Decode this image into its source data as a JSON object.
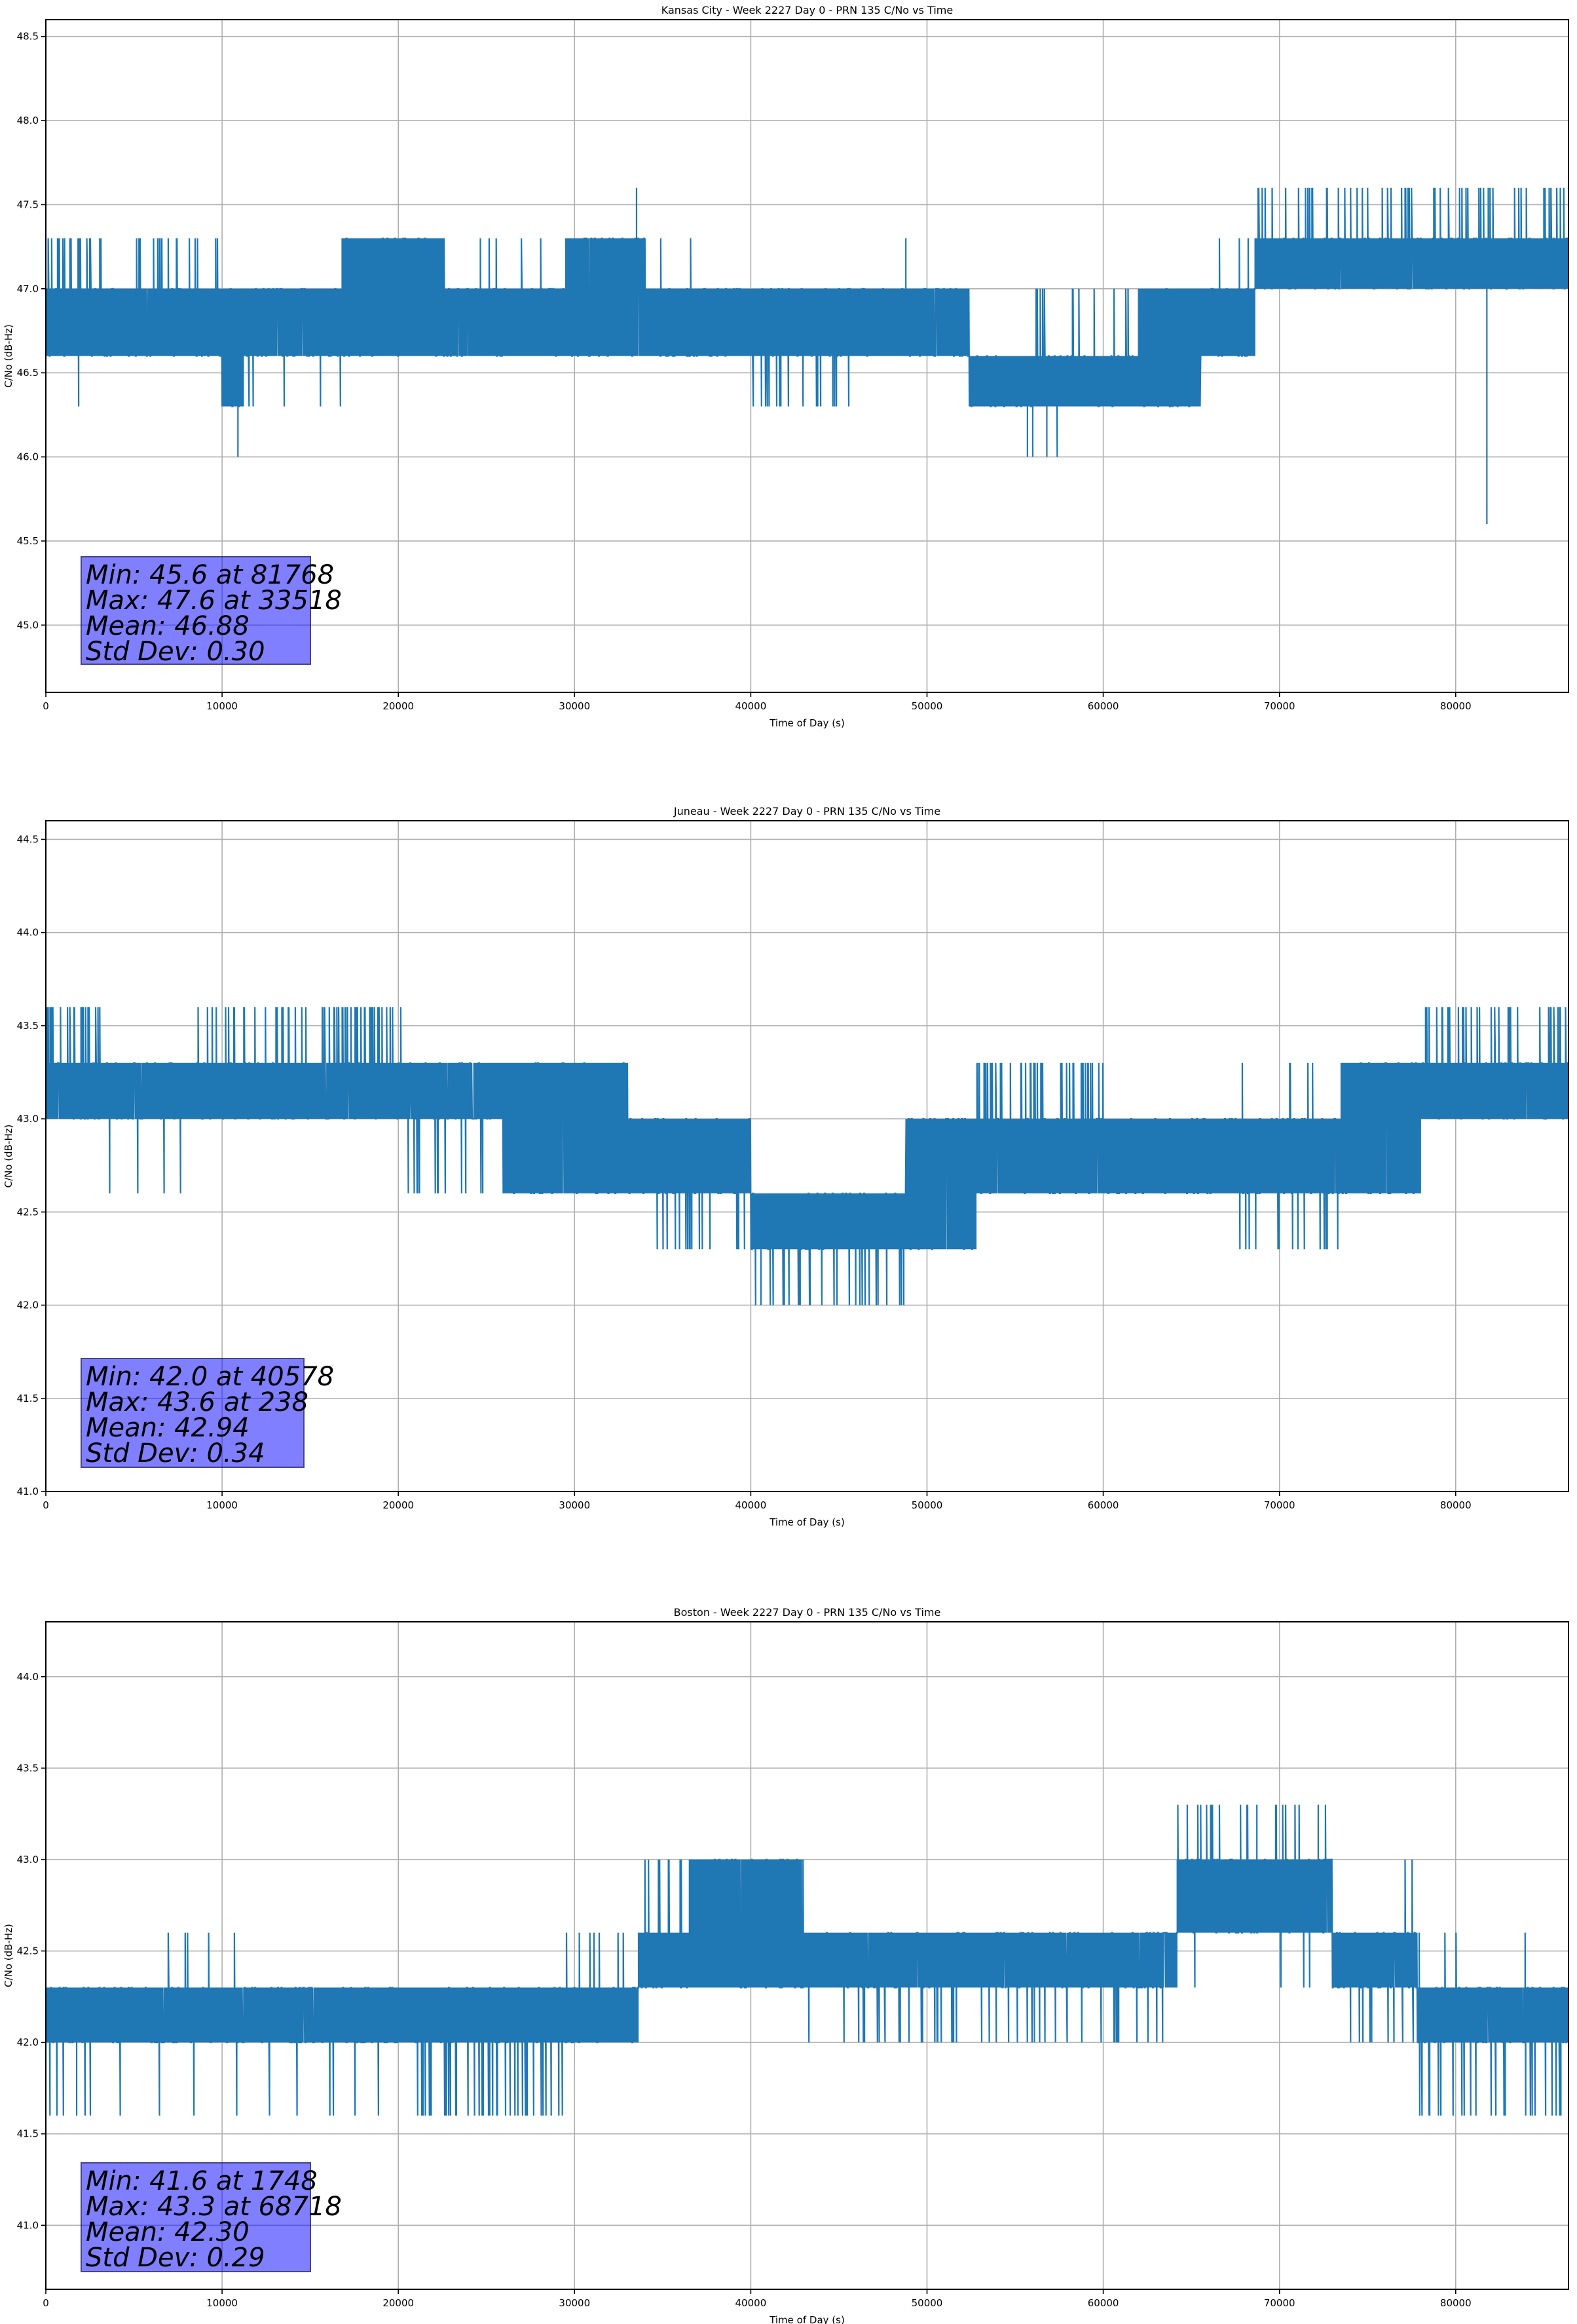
{
  "figure": {
    "line_color": "#1f77b4",
    "statbox_color": "#8080ff"
  },
  "chart_data": [
    {
      "type": "line",
      "title": "Kansas City - Week 2227 Day 0 - PRN 135 C/No vs Time",
      "xlabel": "Time of Day (s)",
      "ylabel": "C/No (dB-Hz)",
      "xlim": [
        0,
        86400
      ],
      "ylim": [
        44.6,
        48.6
      ],
      "xticks": [
        0,
        10000,
        20000,
        30000,
        40000,
        50000,
        60000,
        70000,
        80000
      ],
      "xtick_labels": [
        "0",
        "10000",
        "20000",
        "30000",
        "40000",
        "50000",
        "60000",
        "70000",
        "80000"
      ],
      "yticks": [
        45.0,
        45.5,
        46.0,
        46.5,
        47.0,
        47.5,
        48.0,
        48.5
      ],
      "ytick_labels": [
        "45.0",
        "45.5",
        "46.0",
        "46.5",
        "47.0",
        "47.5",
        "48.0",
        "48.5"
      ],
      "grid": true,
      "stats": {
        "min_label": "Min: 45.6 at 81768",
        "max_label": "Max: 47.6 at 33518",
        "mean_label": "Mean: 46.88",
        "std_label": "Std Dev: 0.30",
        "min": 45.6,
        "min_time": 81768,
        "max": 47.6,
        "max_time": 33518,
        "mean": 46.88,
        "std": 0.3
      },
      "series_segments": [
        {
          "t0": 0,
          "t1": 3200,
          "lo": 46.6,
          "hi": 47.0,
          "up": 47.3,
          "up_rate": 0.5,
          "down": 46.3,
          "down_rate": 0.08
        },
        {
          "t0": 3200,
          "t1": 4800,
          "lo": 46.6,
          "hi": 47.0,
          "up": 47.3,
          "up_rate": 0.05,
          "down": 46.3,
          "down_rate": 0.05
        },
        {
          "t0": 4800,
          "t1": 10000,
          "lo": 46.6,
          "hi": 47.0,
          "up": 47.3,
          "up_rate": 0.35,
          "down": 46.3,
          "down_rate": 0.0
        },
        {
          "t0": 10000,
          "t1": 11200,
          "lo": 46.3,
          "hi": 47.0,
          "up": 47.3,
          "up_rate": 0.0,
          "down": 46.0,
          "down_rate": 0.03
        },
        {
          "t0": 11200,
          "t1": 16800,
          "lo": 46.6,
          "hi": 47.0,
          "up": 47.3,
          "up_rate": 0.0,
          "down": 46.3,
          "down_rate": 0.1
        },
        {
          "t0": 16800,
          "t1": 22600,
          "lo": 46.6,
          "hi": 47.3,
          "up": 47.3,
          "up_rate": 0.6,
          "down": 46.3,
          "down_rate": 0.0
        },
        {
          "t0": 22600,
          "t1": 29500,
          "lo": 46.6,
          "hi": 47.0,
          "up": 47.3,
          "up_rate": 0.08,
          "down": 46.3,
          "down_rate": 0.0
        },
        {
          "t0": 29500,
          "t1": 34000,
          "lo": 46.6,
          "hi": 47.3,
          "up": 47.3,
          "up_rate": 0.8,
          "down": 46.3,
          "down_rate": 0.0
        },
        {
          "t0": 34000,
          "t1": 40000,
          "lo": 46.6,
          "hi": 47.0,
          "up": 47.3,
          "up_rate": 0.06,
          "down": 46.3,
          "down_rate": 0.0
        },
        {
          "t0": 40000,
          "t1": 46000,
          "lo": 46.6,
          "hi": 47.0,
          "up": 47.3,
          "up_rate": 0.0,
          "down": 46.3,
          "down_rate": 0.3
        },
        {
          "t0": 46000,
          "t1": 52400,
          "lo": 46.6,
          "hi": 47.0,
          "up": 47.3,
          "up_rate": 0.01,
          "down": 46.3,
          "down_rate": 0.0
        },
        {
          "t0": 52400,
          "t1": 58500,
          "lo": 46.3,
          "hi": 46.6,
          "up": 47.0,
          "up_rate": 0.05,
          "down": 46.0,
          "down_rate": 0.02
        },
        {
          "t0": 58500,
          "t1": 62000,
          "lo": 46.3,
          "hi": 46.6,
          "up": 47.0,
          "up_rate": 0.15,
          "down": 46.0,
          "down_rate": 0.0
        },
        {
          "t0": 62000,
          "t1": 65500,
          "lo": 46.3,
          "hi": 47.0,
          "up": 47.0,
          "up_rate": 0.2,
          "down": 46.0,
          "down_rate": 0.0
        },
        {
          "t0": 65500,
          "t1": 68600,
          "lo": 46.6,
          "hi": 47.0,
          "up": 47.3,
          "up_rate": 0.15,
          "down": 46.3,
          "down_rate": 0.0
        },
        {
          "t0": 68600,
          "t1": 86400,
          "lo": 47.0,
          "hi": 47.3,
          "up": 47.6,
          "up_rate": 0.35,
          "down": 46.6,
          "down_rate": 0.0
        }
      ],
      "series_spikes": [
        {
          "t": 10900,
          "v": 46.0
        },
        {
          "t": 33518,
          "v": 47.6
        },
        {
          "t": 48800,
          "v": 47.3
        },
        {
          "t": 55700,
          "v": 46.0
        },
        {
          "t": 56000,
          "v": 46.0
        },
        {
          "t": 56800,
          "v": 46.0
        },
        {
          "t": 81768,
          "v": 45.6
        }
      ]
    },
    {
      "type": "line",
      "title": "Juneau - Week 2227 Day 0 - PRN 135 C/No vs Time",
      "xlabel": "Time of Day (s)",
      "ylabel": "C/No (dB-Hz)",
      "xlim": [
        0,
        86400
      ],
      "ylim": [
        41.0,
        44.6
      ],
      "xticks": [
        0,
        10000,
        20000,
        30000,
        40000,
        50000,
        60000,
        70000,
        80000
      ],
      "xtick_labels": [
        "0",
        "10000",
        "20000",
        "30000",
        "40000",
        "50000",
        "60000",
        "70000",
        "80000"
      ],
      "yticks": [
        41.0,
        41.5,
        42.0,
        42.5,
        43.0,
        43.5,
        44.0,
        44.5
      ],
      "ytick_labels": [
        "41.0",
        "41.5",
        "42.0",
        "42.5",
        "43.0",
        "43.5",
        "44.0",
        "44.5"
      ],
      "grid": true,
      "stats": {
        "min_label": "Min: 42.0 at 40578",
        "max_label": "Max: 43.6 at 238",
        "mean_label": "Mean: 42.94",
        "std_label": "Std Dev: 0.34",
        "min": 42.0,
        "min_time": 40578,
        "max": 43.6,
        "max_time": 238,
        "mean": 42.94,
        "std": 0.34
      },
      "series_segments": [
        {
          "t0": 0,
          "t1": 3200,
          "lo": 43.0,
          "hi": 43.3,
          "up": 43.6,
          "up_rate": 0.6,
          "down": 42.6,
          "down_rate": 0.0
        },
        {
          "t0": 3200,
          "t1": 8500,
          "lo": 43.0,
          "hi": 43.3,
          "up": 43.6,
          "up_rate": 0.02,
          "down": 42.6,
          "down_rate": 0.12
        },
        {
          "t0": 8500,
          "t1": 20500,
          "lo": 43.0,
          "hi": 43.3,
          "up": 43.6,
          "up_rate": 0.45,
          "down": 42.6,
          "down_rate": 0.0
        },
        {
          "t0": 20500,
          "t1": 26000,
          "lo": 43.0,
          "hi": 43.3,
          "up": 43.6,
          "up_rate": 0.0,
          "down": 42.6,
          "down_rate": 0.25
        },
        {
          "t0": 26000,
          "t1": 33000,
          "lo": 42.6,
          "hi": 43.3,
          "up": 43.3,
          "up_rate": 0.5,
          "down": 42.6,
          "down_rate": 0.0
        },
        {
          "t0": 33000,
          "t1": 34500,
          "lo": 42.6,
          "hi": 43.0,
          "up": 43.3,
          "up_rate": 0.1,
          "down": 42.3,
          "down_rate": 0.0
        },
        {
          "t0": 34500,
          "t1": 40000,
          "lo": 42.6,
          "hi": 43.0,
          "up": 43.3,
          "up_rate": 0.0,
          "down": 42.3,
          "down_rate": 0.2
        },
        {
          "t0": 40000,
          "t1": 48800,
          "lo": 42.3,
          "hi": 42.6,
          "up": 43.0,
          "up_rate": 0.0,
          "down": 42.0,
          "down_rate": 0.3
        },
        {
          "t0": 48800,
          "t1": 52800,
          "lo": 42.3,
          "hi": 43.0,
          "up": 43.0,
          "up_rate": 0.2,
          "down": 42.0,
          "down_rate": 0.0
        },
        {
          "t0": 52800,
          "t1": 60000,
          "lo": 42.6,
          "hi": 43.0,
          "up": 43.3,
          "up_rate": 0.55,
          "down": 42.3,
          "down_rate": 0.0
        },
        {
          "t0": 60000,
          "t1": 66500,
          "lo": 42.6,
          "hi": 43.0,
          "up": 43.3,
          "up_rate": 0.0,
          "down": 42.3,
          "down_rate": 0.0
        },
        {
          "t0": 66500,
          "t1": 73500,
          "lo": 42.6,
          "hi": 43.0,
          "up": 43.3,
          "up_rate": 0.08,
          "down": 42.3,
          "down_rate": 0.15
        },
        {
          "t0": 73500,
          "t1": 78000,
          "lo": 42.6,
          "hi": 43.3,
          "up": 43.3,
          "up_rate": 0.4,
          "down": 42.3,
          "down_rate": 0.0
        },
        {
          "t0": 78000,
          "t1": 86400,
          "lo": 43.0,
          "hi": 43.3,
          "up": 43.6,
          "up_rate": 0.45,
          "down": 42.6,
          "down_rate": 0.0
        }
      ],
      "series_spikes": [
        {
          "t": 238,
          "v": 43.6
        },
        {
          "t": 40578,
          "v": 42.0
        }
      ]
    },
    {
      "type": "line",
      "title": "Boston - Week 2227 Day 0 - PRN 135 C/No vs Time",
      "xlabel": "Time of Day (s)",
      "ylabel": "C/No (dB-Hz)",
      "xlim": [
        0,
        86400
      ],
      "ylim": [
        40.65,
        44.3
      ],
      "xticks": [
        0,
        10000,
        20000,
        30000,
        40000,
        50000,
        60000,
        70000,
        80000
      ],
      "xtick_labels": [
        "0",
        "10000",
        "20000",
        "30000",
        "40000",
        "50000",
        "60000",
        "70000",
        "80000"
      ],
      "yticks": [
        41.0,
        41.5,
        42.0,
        42.5,
        43.0,
        43.5,
        44.0
      ],
      "ytick_labels": [
        "41.0",
        "41.5",
        "42.0",
        "42.5",
        "43.0",
        "43.5",
        "44.0"
      ],
      "grid": true,
      "stats": {
        "min_label": "Min: 41.6 at 1748",
        "max_label": "Max: 43.3 at 68718",
        "mean_label": "Mean: 42.30",
        "std_label": "Std Dev: 0.29",
        "min": 41.6,
        "min_time": 1748,
        "max": 43.3,
        "max_time": 68718,
        "mean": 42.3,
        "std": 0.29
      },
      "series_segments": [
        {
          "t0": 0,
          "t1": 6500,
          "lo": 42.0,
          "hi": 42.3,
          "up": 42.6,
          "up_rate": 0.02,
          "down": 41.6,
          "down_rate": 0.08
        },
        {
          "t0": 6500,
          "t1": 11000,
          "lo": 42.0,
          "hi": 42.3,
          "up": 42.6,
          "up_rate": 0.1,
          "down": 41.6,
          "down_rate": 0.04
        },
        {
          "t0": 11000,
          "t1": 21000,
          "lo": 42.0,
          "hi": 42.3,
          "up": 42.6,
          "up_rate": 0.0,
          "down": 41.6,
          "down_rate": 0.1
        },
        {
          "t0": 21000,
          "t1": 29500,
          "lo": 42.0,
          "hi": 42.3,
          "up": 42.6,
          "up_rate": 0.0,
          "down": 41.6,
          "down_rate": 0.4
        },
        {
          "t0": 29500,
          "t1": 33600,
          "lo": 42.0,
          "hi": 42.3,
          "up": 42.6,
          "up_rate": 0.2,
          "down": 41.6,
          "down_rate": 0.0
        },
        {
          "t0": 33600,
          "t1": 36500,
          "lo": 42.3,
          "hi": 42.6,
          "up": 43.0,
          "up_rate": 0.35,
          "down": 42.0,
          "down_rate": 0.0
        },
        {
          "t0": 36500,
          "t1": 43000,
          "lo": 42.3,
          "hi": 43.0,
          "up": 43.0,
          "up_rate": 0.5,
          "down": 42.0,
          "down_rate": 0.0
        },
        {
          "t0": 43000,
          "t1": 64200,
          "lo": 42.3,
          "hi": 42.6,
          "up": 43.0,
          "up_rate": 0.0,
          "down": 42.0,
          "down_rate": 0.25
        },
        {
          "t0": 64200,
          "t1": 73000,
          "lo": 42.6,
          "hi": 43.0,
          "up": 43.3,
          "up_rate": 0.2,
          "down": 42.3,
          "down_rate": 0.05
        },
        {
          "t0": 73000,
          "t1": 77800,
          "lo": 42.3,
          "hi": 42.6,
          "up": 43.0,
          "up_rate": 0.1,
          "down": 42.0,
          "down_rate": 0.2
        },
        {
          "t0": 77800,
          "t1": 86400,
          "lo": 42.0,
          "hi": 42.3,
          "up": 42.6,
          "up_rate": 0.05,
          "down": 41.6,
          "down_rate": 0.35
        }
      ],
      "series_spikes": [
        {
          "t": 1748,
          "v": 41.6
        },
        {
          "t": 68718,
          "v": 43.3
        },
        {
          "t": 72200,
          "v": 43.3
        }
      ]
    }
  ]
}
